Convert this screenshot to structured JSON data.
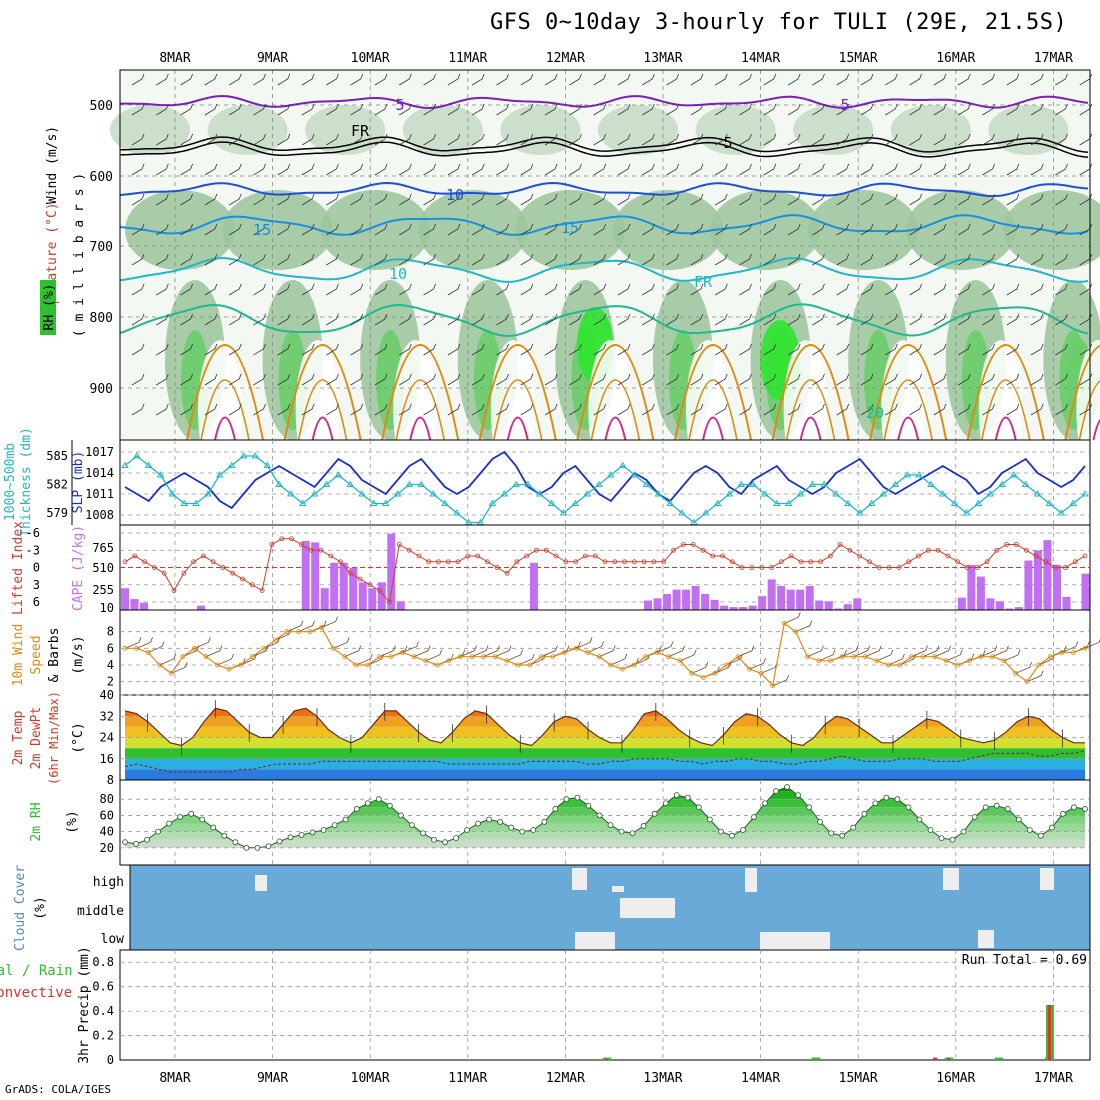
{
  "title": "GFS 0~10day 3-hourly for TULI (29E, 21.5S)",
  "credit": "GrADS: COLA/IGES",
  "date_labels": [
    "8MAR",
    "9MAR",
    "10MAR",
    "11MAR",
    "12MAR",
    "13MAR",
    "14MAR",
    "15MAR",
    "16MAR",
    "17MAR"
  ],
  "colors": {
    "rh_fill": [
      "#e6f2e6",
      "#c8dcc8",
      "#9fc79f",
      "#6acd6a",
      "#2ee62e"
    ],
    "temp_5": "#7a1fb8",
    "temp_fr": "#000000",
    "temp_5b": "#1f4fd8",
    "temp_10": "#1a8fe0",
    "temp_15": "#20b8c8",
    "temp_20": "#20b890",
    "temp_25": "#e08a10",
    "temp_30": "#d42a8a",
    "slp": "#1a2fd0",
    "thickness": "#20b8c8",
    "lifted": "#d43a2a",
    "cape": "#c070f0",
    "wind_speed": "#e08a10",
    "cloud_bg": "#6aaad8",
    "rh2m": "#3cc03c",
    "precip_rain": "#2ec02e",
    "precip_conv": "#e03030"
  },
  "panels": {
    "upper": {
      "left_labels": [
        "Wind (m/s)",
        "Temperature (°C)",
        "RH (%)"
      ],
      "axis_label": "( m i l l i b a r s )",
      "ticks": [
        "500",
        "600",
        "700",
        "800",
        "900"
      ],
      "contour_labels": [
        "5",
        "FR",
        "5",
        "10",
        "15",
        "10",
        "15",
        "FR",
        "5",
        "20"
      ]
    },
    "slp_thick": {
      "left_label_1": "1000~500mb",
      "left_label_2": "Thickness (dm)",
      "right_label": "SLP (mb)",
      "ticks_left": [
        "585",
        "582",
        "579"
      ],
      "ticks_right": [
        "1017",
        "1014",
        "1011",
        "1008"
      ]
    },
    "cape_li": {
      "left_label_1": "Lifted Index",
      "right_label": "CAPE (J/kg)",
      "ticks_left": [
        "-6",
        "-3",
        "0",
        "3",
        "6"
      ],
      "ticks_right": [
        "765",
        "510",
        "255",
        "10"
      ]
    },
    "wind10": {
      "left_label_1": "10m Wind",
      "left_label_2": "Speed",
      "left_label_3": "& Barbs",
      "unit": "(m/s)",
      "ticks": [
        "8",
        "6",
        "4",
        "2"
      ]
    },
    "temp2m": {
      "left_label_1": "2m Temp",
      "left_label_2": "2m DewPt",
      "left_label_3": "(6hr Min/Max)",
      "unit": "(°C)",
      "ticks": [
        "40",
        "32",
        "24",
        "16",
        "8"
      ]
    },
    "rh2m": {
      "left_label": "2m RH",
      "unit": "(%)",
      "ticks": [
        "80",
        "60",
        "40",
        "20"
      ]
    },
    "cloud": {
      "left_label": "Cloud Cover",
      "unit": "(%)",
      "levels": [
        "high",
        "middle",
        "low"
      ]
    },
    "precip": {
      "left_label_1": "Total / Rain",
      "left_label_2": "Convective",
      "axis_label": "3hr Precip (mm)",
      "ticks": [
        "0.8",
        "0.6",
        "0.4",
        "0.2",
        "0"
      ],
      "run_total": "Run Total = 0.69"
    }
  },
  "chart_data": [
    {
      "type": "line",
      "title": "1000~500mb Thickness / SLP",
      "series": [
        {
          "name": "SLP (mb)",
          "values": [
            1012,
            1011,
            1010,
            1012,
            1013,
            1014,
            1013,
            1012,
            1010,
            1009,
            1011,
            1013,
            1014,
            1015,
            1014,
            1013,
            1012,
            1014,
            1016,
            1015,
            1013,
            1012,
            1011,
            1013,
            1015,
            1016,
            1014,
            1012,
            1011,
            1012,
            1014,
            1016,
            1017,
            1015,
            1012,
            1011,
            1012,
            1014,
            1015,
            1013,
            1011,
            1010,
            1012,
            1014,
            1013,
            1011,
            1010,
            1012,
            1014,
            1015,
            1014,
            1012,
            1011,
            1013,
            1014,
            1015,
            1013,
            1012,
            1011,
            1012,
            1014,
            1015,
            1016,
            1014,
            1012,
            1011,
            1012,
            1013,
            1014,
            1015,
            1014,
            1013,
            1011,
            1012,
            1014,
            1015,
            1016,
            1014,
            1013,
            1012,
            1013,
            1015
          ]
        },
        {
          "name": "1000~500mb Thickness (dm)",
          "values": [
            584,
            585,
            584,
            583,
            581,
            580,
            580,
            581,
            583,
            584,
            585,
            585,
            584,
            582,
            581,
            580,
            581,
            582,
            583,
            582,
            581,
            580,
            580,
            581,
            582,
            582,
            581,
            580,
            579,
            578,
            578,
            580,
            581,
            582,
            582,
            581,
            580,
            579,
            580,
            581,
            582,
            583,
            584,
            583,
            582,
            581,
            580,
            579,
            578,
            579,
            580,
            581,
            582,
            582,
            581,
            580,
            580,
            581,
            582,
            582,
            581,
            580,
            579,
            580,
            581,
            582,
            583,
            583,
            582,
            581,
            580,
            579,
            580,
            581,
            582,
            583,
            582,
            581,
            580,
            579,
            580,
            581
          ]
        }
      ],
      "y_left_ticks": [
        585,
        582,
        579
      ],
      "y_right_ticks": [
        1017,
        1014,
        1011,
        1008
      ]
    },
    {
      "type": "bar",
      "title": "Lifted Index / CAPE",
      "series": [
        {
          "name": "CAPE (J/kg)",
          "values": [
            300,
            150,
            100,
            0,
            0,
            0,
            0,
            0,
            60,
            0,
            0,
            0,
            0,
            0,
            0,
            0,
            0,
            0,
            0,
            950,
            930,
            300,
            650,
            650,
            580,
            380,
            300,
            380,
            1050,
            120,
            0,
            0,
            0,
            0,
            0,
            0,
            0,
            0,
            0,
            0,
            0,
            0,
            0,
            650,
            0,
            0,
            0,
            0,
            0,
            0,
            0,
            0,
            0,
            0,
            0,
            130,
            160,
            220,
            280,
            280,
            330,
            220,
            140,
            60,
            40,
            40,
            60,
            190,
            420,
            330,
            280,
            280,
            330,
            130,
            120,
            20,
            80,
            160,
            0,
            0,
            0,
            0,
            0,
            0,
            0,
            0,
            0,
            0,
            170,
            620,
            460,
            160,
            120,
            20,
            40,
            680,
            820,
            960,
            620,
            180,
            0,
            500
          ]
        },
        {
          "name": "Lifted Index",
          "values": [
            -1,
            -2,
            -1,
            0,
            1,
            4,
            1,
            -1,
            -2,
            -1,
            0,
            1,
            2,
            3,
            4,
            -4,
            -5,
            -5,
            -4,
            -3,
            -3,
            -2,
            -1,
            1,
            2,
            3,
            4,
            6,
            -4,
            -3,
            -2,
            -1,
            -1,
            -1,
            -1,
            -2,
            -2,
            -1,
            0,
            1,
            -1,
            -2,
            -3,
            -3,
            -2,
            -1,
            -1,
            -2,
            -2,
            -1,
            -1,
            -1,
            -1,
            -1,
            -1,
            -1,
            -3,
            -4,
            -4,
            -3,
            -2,
            -2,
            -1,
            0,
            0,
            0,
            0,
            -1,
            -2,
            -1,
            -1,
            -1,
            -2,
            -4,
            -3,
            -2,
            -1,
            0,
            0,
            0,
            -1,
            -2,
            -3,
            -3,
            -2,
            -1,
            0,
            0,
            -1,
            -3,
            -4,
            -4,
            -3,
            -2,
            -1,
            0,
            0,
            -1,
            -2
          ]
        }
      ],
      "y_left_ticks": [
        -6,
        -3,
        0,
        3,
        6
      ],
      "y_right_ticks": [
        765,
        510,
        255,
        10
      ]
    },
    {
      "type": "line",
      "title": "10m Wind Speed",
      "series": [
        {
          "name": "10m Wind Speed (m/s)",
          "values": [
            6,
            6,
            5.5,
            4,
            3,
            5,
            6,
            5,
            4,
            3.5,
            4,
            5,
            6,
            7,
            8,
            8,
            8,
            8.5,
            6,
            5,
            4,
            4,
            5,
            5,
            5.5,
            5,
            4.5,
            4,
            4.5,
            5,
            5,
            5,
            5,
            4.5,
            4,
            4,
            5,
            5,
            5.5,
            6,
            5.5,
            5,
            4,
            3.5,
            4,
            5,
            5.5,
            5,
            4.5,
            3,
            2.5,
            3,
            4,
            5,
            3.5,
            3,
            1.5,
            9,
            8,
            5,
            4.5,
            4.5,
            5,
            5,
            5,
            4.5,
            4,
            4,
            5,
            5,
            5,
            4.5,
            4,
            4.5,
            5,
            5,
            4.5,
            3,
            2,
            4,
            5,
            5.5,
            5.5,
            6
          ]
        }
      ],
      "y_ticks": [
        8,
        6,
        4,
        2
      ]
    },
    {
      "type": "area",
      "title": "2m Temp / 2m DewPt",
      "series": [
        {
          "name": "2m Temp (°C)",
          "values": [
            34,
            33,
            30,
            26,
            22,
            21,
            24,
            30,
            35,
            34,
            30,
            26,
            24,
            24,
            29,
            34,
            35,
            32,
            27,
            24,
            22,
            24,
            29,
            34,
            34,
            30,
            26,
            23,
            22,
            26,
            31,
            34,
            33,
            29,
            25,
            22,
            21,
            25,
            30,
            32,
            31,
            27,
            24,
            22,
            22,
            27,
            33,
            34,
            31,
            27,
            24,
            22,
            21,
            25,
            30,
            33,
            32,
            29,
            25,
            22,
            21,
            24,
            29,
            32,
            31,
            28,
            25,
            22,
            22,
            25,
            28,
            31,
            30,
            27,
            24,
            23,
            22,
            23,
            26,
            30,
            32,
            31,
            27,
            24,
            22,
            22
          ]
        },
        {
          "name": "2m DewPt (°C)",
          "values": [
            13,
            14,
            13,
            12,
            11,
            11,
            11,
            11,
            11,
            11,
            12,
            12,
            13,
            14,
            14,
            14,
            14,
            15,
            15,
            15,
            15,
            15,
            15,
            15,
            15,
            15,
            15,
            15,
            14,
            14,
            14,
            14,
            14,
            14,
            14,
            15,
            15,
            15,
            15,
            15,
            14,
            14,
            15,
            15,
            16,
            16,
            16,
            16,
            15,
            15,
            14,
            15,
            15,
            16,
            16,
            15,
            15,
            14,
            14,
            15,
            15,
            16,
            17,
            16,
            15,
            15,
            15,
            16,
            16,
            16,
            15,
            15,
            15,
            16,
            17,
            18,
            18,
            18,
            18,
            17,
            17,
            18,
            18,
            19
          ]
        }
      ],
      "y_ticks": [
        40,
        32,
        24,
        16,
        8
      ]
    },
    {
      "type": "area",
      "title": "2m RH",
      "series": [
        {
          "name": "2m RH (%)",
          "values": [
            27,
            25,
            30,
            40,
            50,
            58,
            62,
            55,
            45,
            35,
            27,
            20,
            20,
            22,
            28,
            33,
            36,
            39,
            42,
            48,
            55,
            68,
            75,
            80,
            72,
            60,
            48,
            38,
            30,
            27,
            32,
            42,
            50,
            55,
            52,
            45,
            40,
            42,
            52,
            68,
            80,
            82,
            72,
            60,
            48,
            40,
            38,
            47,
            62,
            75,
            85,
            82,
            70,
            55,
            40,
            35,
            42,
            58,
            75,
            90,
            95,
            85,
            70,
            52,
            38,
            35,
            45,
            62,
            75,
            82,
            80,
            70,
            55,
            42,
            32,
            30,
            40,
            58,
            70,
            72,
            68,
            55,
            42,
            35,
            45,
            62,
            70,
            68
          ]
        }
      ],
      "y_ticks": [
        80,
        60,
        40,
        20
      ]
    },
    {
      "type": "bar",
      "title": "3hr Precip",
      "series": [
        {
          "name": "Total / Rain (mm)",
          "values": [
            0.02,
            0.02,
            0.02,
            0.02,
            0.02,
            0.45
          ]
        },
        {
          "name": "Convective (mm)",
          "values": [
            0.01,
            0,
            0.02,
            0,
            0,
            0.45
          ]
        }
      ],
      "y_ticks": [
        0.8,
        0.6,
        0.4,
        0.2,
        0
      ],
      "run_total": 0.69
    }
  ]
}
